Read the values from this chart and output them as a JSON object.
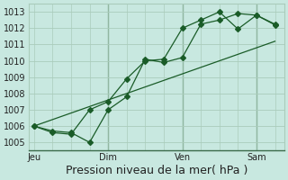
{
  "background_color": "#c8e8e0",
  "grid_color": "#aaccbb",
  "line_color": "#1a5c28",
  "title": "Pression niveau de la mer( hPa )",
  "ylim": [
    1004.5,
    1013.5
  ],
  "yticks": [
    1005,
    1006,
    1007,
    1008,
    1009,
    1010,
    1011,
    1012,
    1013
  ],
  "xtick_labels": [
    "Jeu",
    "Dim",
    "Ven",
    "Sam"
  ],
  "xtick_positions": [
    0,
    4,
    8,
    12
  ],
  "xlim": [
    -0.3,
    13.5
  ],
  "line1_x": [
    0,
    1,
    2,
    3,
    4,
    5,
    6,
    7,
    8,
    9,
    10,
    11,
    12,
    13
  ],
  "line1_y": [
    1006.0,
    1005.7,
    1005.6,
    1005.0,
    1007.0,
    1007.8,
    1010.1,
    1009.9,
    1010.2,
    1012.25,
    1012.5,
    1012.9,
    1012.8,
    1012.2
  ],
  "line2_x": [
    0,
    1,
    2,
    3,
    4,
    5,
    6,
    7,
    8,
    9,
    10,
    11,
    12,
    13
  ],
  "line2_y": [
    1006.0,
    1005.6,
    1005.5,
    1007.0,
    1007.5,
    1008.9,
    1010.0,
    1010.1,
    1012.0,
    1012.5,
    1013.0,
    1011.95,
    1012.8,
    1012.25
  ],
  "line3_x": [
    0,
    13
  ],
  "line3_y": [
    1006.0,
    1011.2
  ],
  "vline_positions": [
    4,
    8,
    12
  ],
  "marker": "D",
  "markersize": 3,
  "title_fontsize": 9,
  "tick_fontsize": 7,
  "ytick_fontsize": 7
}
